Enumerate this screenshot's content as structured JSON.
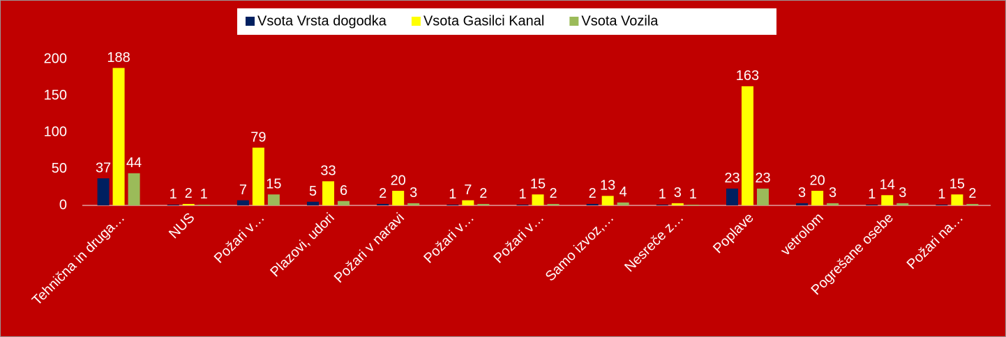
{
  "chart_data": {
    "type": "bar",
    "categories": [
      "Tehnična in druga…",
      "NUS",
      "Požari v…",
      "Plazovi, udori",
      "Požari v naravi",
      "Požari v…",
      "Požari v…",
      "Samo izvoz,…",
      "Nesreče z…",
      "Poplave",
      "vetrolom",
      "Pogrešane osebe",
      "Požari na…"
    ],
    "series": [
      {
        "name": "Vsota Vrsta dogodka",
        "color": "#002060",
        "values": [
          37,
          1,
          7,
          5,
          2,
          1,
          1,
          2,
          1,
          23,
          3,
          1,
          1
        ]
      },
      {
        "name": "Vsota Gasilci Kanal",
        "color": "#ffff00",
        "values": [
          188,
          2,
          79,
          33,
          20,
          7,
          15,
          13,
          3,
          163,
          20,
          14,
          15
        ]
      },
      {
        "name": "Vsota Vozila",
        "color": "#9bbb59",
        "values": [
          44,
          1,
          15,
          6,
          3,
          2,
          2,
          4,
          1,
          23,
          3,
          3,
          2
        ]
      }
    ],
    "ylim": [
      0,
      210
    ],
    "yticks": [
      0,
      50,
      100,
      150,
      200
    ],
    "grid": false,
    "legend": "top"
  }
}
